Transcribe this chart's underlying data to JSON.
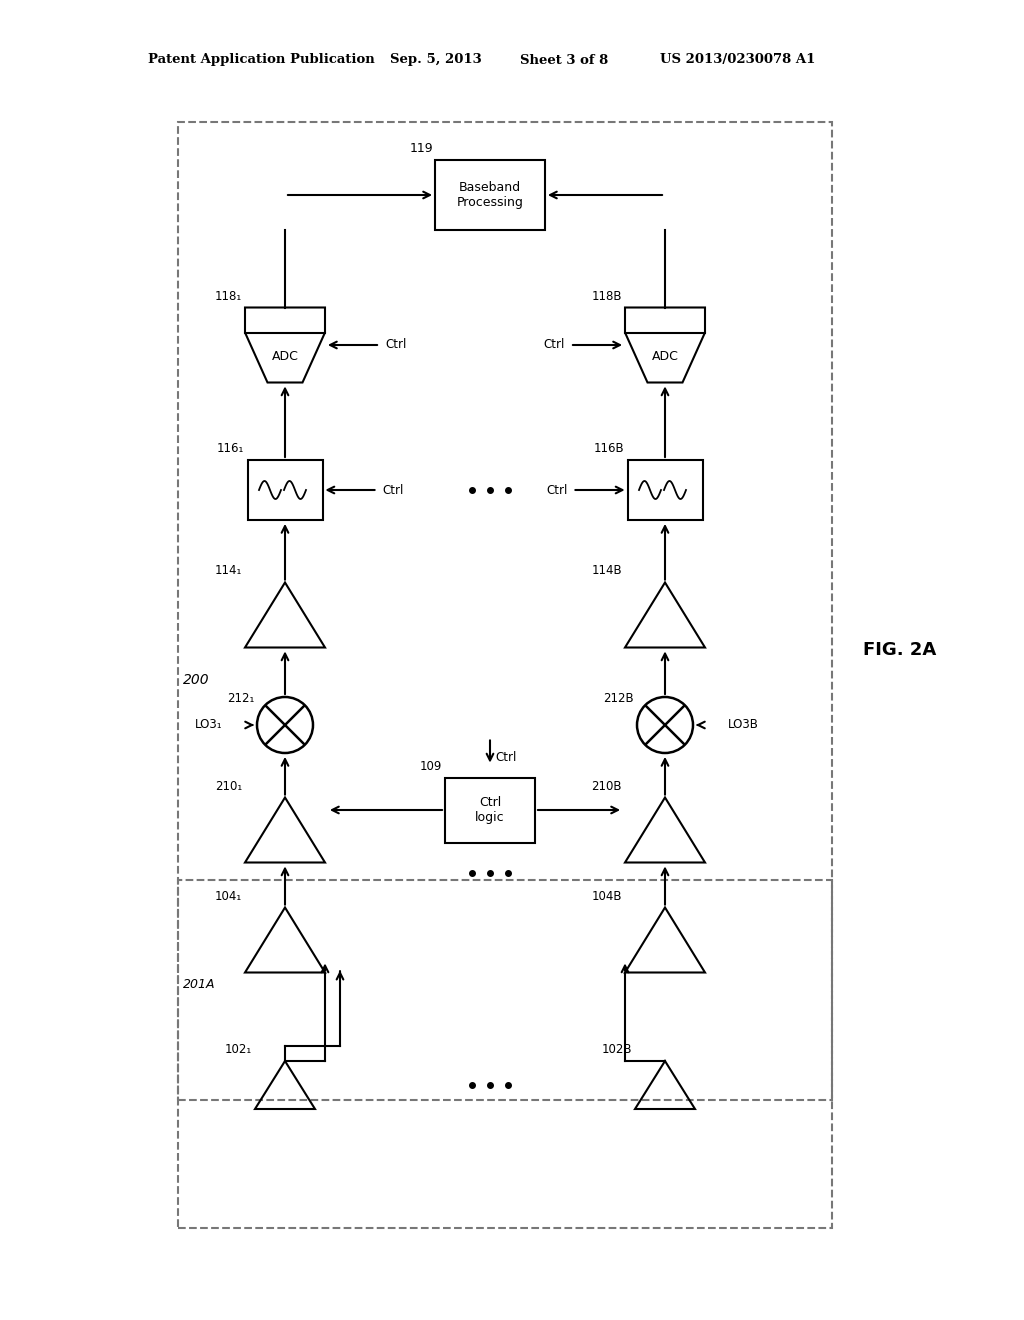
{
  "bg_color": "#ffffff",
  "line_color": "#000000",
  "header_text": "Patent Application Publication",
  "header_date": "Sep. 5, 2013",
  "header_sheet": "Sheet 3 of 8",
  "header_patent": "US 2013/0230078 A1",
  "fig_label": "FIG. 2A",
  "outer_label": "200",
  "lower_label": "201A",
  "baseband_text": "Baseband\nProcessing",
  "baseband_num": "119",
  "adc_left_num": "118",
  "adc_right_num": "118",
  "filter_left_num": "116",
  "filter_right_num": "116",
  "amp_left_upper_num": "114",
  "amp_right_upper_num": "114",
  "mixer_left_num": "212",
  "mixer_right_num": "212",
  "amp_left_lower_num": "210",
  "amp_right_lower_num": "210",
  "amp_left_bot_num": "104",
  "amp_right_bot_num": "104",
  "amp_left_base_num": "102",
  "amp_right_base_num": "102",
  "ctrl_logic_num": "109",
  "ctrl_text": "Ctrl\nlogic",
  "lo3_left": "LO3",
  "lo3_right": "LO3",
  "ctrl_label": "Ctrl"
}
